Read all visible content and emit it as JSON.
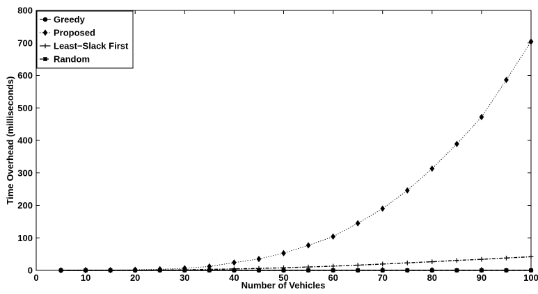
{
  "chart_data": {
    "type": "line",
    "title": "",
    "xlabel": "Number of Vehicles",
    "ylabel": "Time Overhead (milliseconds)",
    "xlim": [
      0,
      100
    ],
    "ylim": [
      0,
      800
    ],
    "xticks": [
      0,
      10,
      20,
      30,
      40,
      50,
      60,
      70,
      80,
      90,
      100
    ],
    "yticks": [
      0,
      100,
      200,
      300,
      400,
      500,
      600,
      700,
      800
    ],
    "grid": false,
    "legend_position": "top-left",
    "x": [
      5,
      10,
      15,
      20,
      25,
      30,
      35,
      40,
      45,
      50,
      55,
      60,
      65,
      70,
      75,
      80,
      85,
      90,
      95,
      100
    ],
    "series": [
      {
        "name": "Greedy",
        "marker": "circle",
        "line_style": "solid",
        "color": "#000000",
        "values": [
          0.1,
          0.1,
          0.1,
          0.1,
          0.1,
          0.1,
          0.1,
          0.1,
          0.1,
          0.1,
          0.1,
          0.1,
          0.1,
          0.1,
          0.1,
          0.1,
          0.1,
          0.1,
          0.1,
          0.1
        ]
      },
      {
        "name": "Proposed",
        "marker": "diamond",
        "line_style": "dotted",
        "color": "#000000",
        "values": [
          0.1,
          0.3,
          0.8,
          1.8,
          3.5,
          6.5,
          12,
          24,
          35,
          53,
          77,
          104,
          145,
          190,
          246,
          313,
          389,
          472,
          586,
          704
        ]
      },
      {
        "name": "Least−Slack First",
        "marker": "plus",
        "line_style": "dashdot",
        "color": "#000000",
        "values": [
          0.05,
          0.1,
          0.3,
          0.6,
          1,
          1.8,
          3,
          4.5,
          6,
          8,
          10.5,
          13,
          16,
          19.5,
          23,
          26.5,
          30.5,
          34,
          38,
          42
        ]
      },
      {
        "name": "Random",
        "marker": "square",
        "line_style": "dashed",
        "color": "#000000",
        "values": [
          0.1,
          0.1,
          0.1,
          0.1,
          0.1,
          0.1,
          0.1,
          0.1,
          0.1,
          0.1,
          0.1,
          0.1,
          0.1,
          0.1,
          0.1,
          0.1,
          0.1,
          0.1,
          0.1,
          0.1
        ]
      }
    ]
  }
}
